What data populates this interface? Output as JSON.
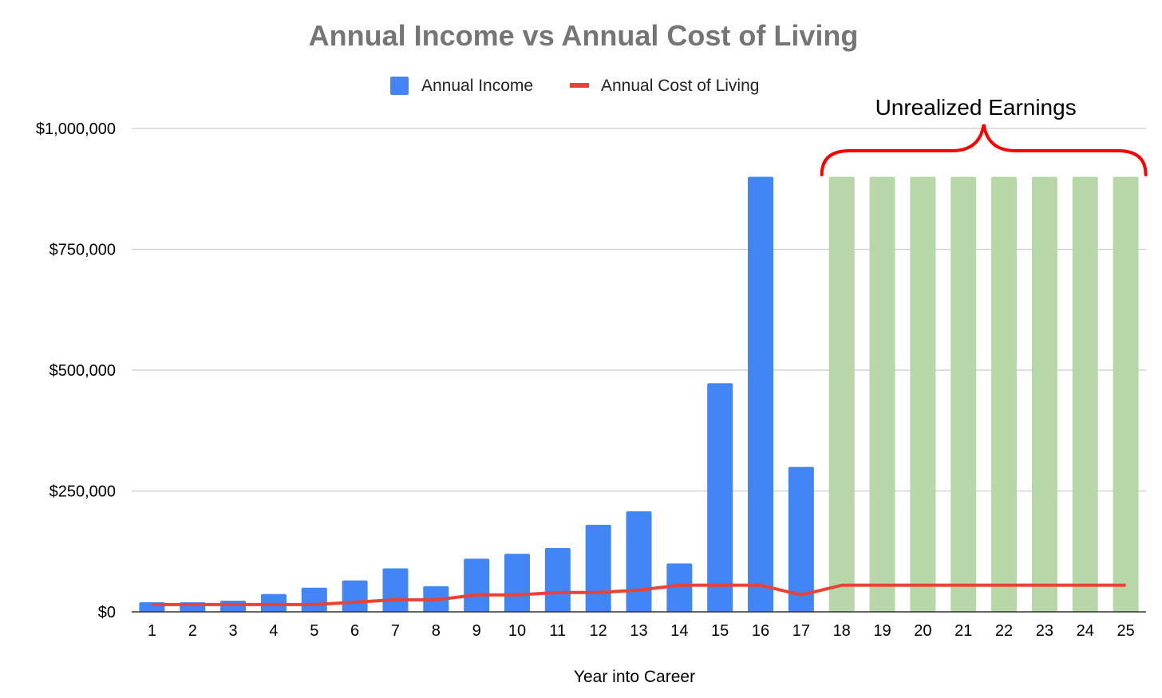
{
  "chart_data": {
    "type": "bar",
    "title": "Annual Income vs Annual Cost of Living",
    "xlabel": "Year into Career",
    "ylabel": "",
    "ylim": [
      0,
      1000000
    ],
    "y_ticks": [
      0,
      250000,
      500000,
      750000,
      1000000
    ],
    "y_tick_labels": [
      "$0",
      "$250,000",
      "$500,000",
      "$750,000",
      "$1,000,000"
    ],
    "grid": true,
    "legend_position": "top-center",
    "categories": [
      "1",
      "2",
      "3",
      "4",
      "5",
      "6",
      "7",
      "8",
      "9",
      "10",
      "11",
      "12",
      "13",
      "14",
      "15",
      "16",
      "17",
      "18",
      "19",
      "20",
      "21",
      "22",
      "23",
      "24",
      "25"
    ],
    "series": [
      {
        "name": "Annual Income",
        "kind": "bar",
        "color": "#4285f4",
        "values": [
          20000,
          20000,
          23000,
          37000,
          50000,
          65000,
          90000,
          53000,
          110000,
          120000,
          132000,
          180000,
          208000,
          100000,
          473000,
          900000,
          300000,
          null,
          null,
          null,
          null,
          null,
          null,
          null,
          null
        ]
      },
      {
        "name": "Annual Cost of Living",
        "kind": "line",
        "color": "#ea4335",
        "values": [
          15000,
          15000,
          15000,
          15000,
          15000,
          20000,
          25000,
          25000,
          35000,
          35000,
          40000,
          40000,
          45000,
          55000,
          55000,
          55000,
          35000,
          55000,
          55000,
          55000,
          55000,
          55000,
          55000,
          55000,
          55000
        ]
      },
      {
        "name": "",
        "kind": "bar",
        "color": "#b7d7a8",
        "values": [
          null,
          null,
          null,
          null,
          null,
          null,
          null,
          null,
          null,
          null,
          null,
          null,
          null,
          null,
          null,
          null,
          null,
          900000,
          900000,
          900000,
          900000,
          900000,
          900000,
          900000,
          900000
        ]
      }
    ],
    "annotation": {
      "text": "Unrealized Earnings",
      "from_category": "18",
      "to_category": "25",
      "brace_color": "#ff0000"
    }
  }
}
